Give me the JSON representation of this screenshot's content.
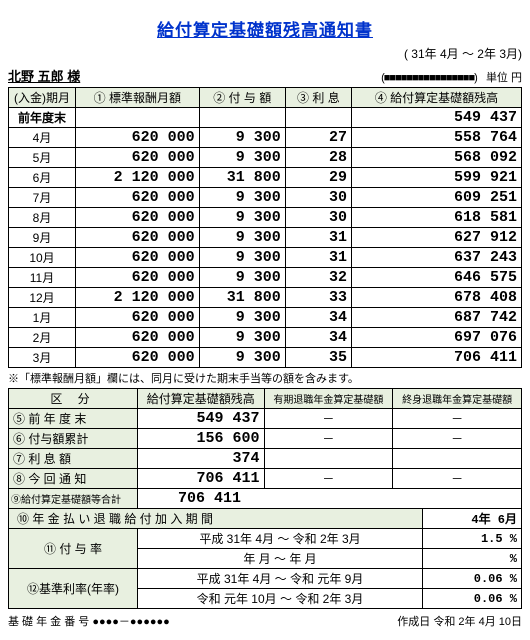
{
  "title": "給付算定基礎額残高通知書",
  "period": "( 31年 4月 ～ 2年 3月)",
  "name": "北野 五郎 様",
  "unit_block": "(■■■■■■■■■■■■■■■■)",
  "unit_label": "単位 円",
  "main_headers": {
    "c0": "(入金)期月",
    "c1": "① 標準報酬月額",
    "c2": "② 付 与 額",
    "c3": "③ 利   息",
    "c4": "④ 給付算定基礎額残高"
  },
  "rows": [
    {
      "m": "前年度末",
      "a": "",
      "b": "",
      "c": "",
      "d": "549 437"
    },
    {
      "m": "4月",
      "a": "620 000",
      "b": "9 300",
      "c": "27",
      "d": "558 764"
    },
    {
      "m": "5月",
      "a": "620 000",
      "b": "9 300",
      "c": "28",
      "d": "568 092"
    },
    {
      "m": "6月",
      "a": "2 120 000",
      "b": "31 800",
      "c": "29",
      "d": "599 921"
    },
    {
      "m": "7月",
      "a": "620 000",
      "b": "9 300",
      "c": "30",
      "d": "609 251"
    },
    {
      "m": "8月",
      "a": "620 000",
      "b": "9 300",
      "c": "30",
      "d": "618 581"
    },
    {
      "m": "9月",
      "a": "620 000",
      "b": "9 300",
      "c": "31",
      "d": "627 912"
    },
    {
      "m": "10月",
      "a": "620 000",
      "b": "9 300",
      "c": "31",
      "d": "637 243"
    },
    {
      "m": "11月",
      "a": "620 000",
      "b": "9 300",
      "c": "32",
      "d": "646 575"
    },
    {
      "m": "12月",
      "a": "2 120 000",
      "b": "31 800",
      "c": "33",
      "d": "678 408"
    },
    {
      "m": "1月",
      "a": "620 000",
      "b": "9 300",
      "c": "34",
      "d": "687 742"
    },
    {
      "m": "2月",
      "a": "620 000",
      "b": "9 300",
      "c": "34",
      "d": "697 076"
    },
    {
      "m": "3月",
      "a": "620 000",
      "b": "9 300",
      "c": "35",
      "d": "706 411"
    }
  ],
  "note": "※「標準報酬月額」欄には、同月に受けた期末手当等の額を含みます。",
  "sec2_headers": {
    "kubun": "区    分",
    "h1": "給付算定基礎額残高",
    "h2": "有期退職年金算定基礎額",
    "h3": "終身退職年金算定基礎額"
  },
  "sec2_rows": [
    {
      "label": "⑤ 前 年 度 末",
      "v1": "549 437",
      "v2": "－",
      "v3": "－"
    },
    {
      "label": "⑥ 付与額累計",
      "v1": "156 600",
      "v2": "－",
      "v3": "－"
    },
    {
      "label": "⑦ 利 息 額",
      "v1": "374",
      "v2": "",
      "v3": ""
    },
    {
      "label": "⑧ 今 回 通 知",
      "v1": "706 411",
      "v2": "－",
      "v3": "－"
    },
    {
      "label": "⑨給付算定基礎額等合計",
      "v1": "706 411",
      "v2": "",
      "v3": ""
    }
  ],
  "row10": {
    "label": "⑩  年 金 払 い 退 職 給 付 加 入 期 間",
    "value": "4年  6月"
  },
  "row11": {
    "label": "⑪   付  与  率",
    "line1_period": "平成  31年  4月  ～  令和  2年   3月",
    "line1_rate": "1.5 %",
    "line2_period": "年  月 ～    年  月",
    "line2_rate": "%"
  },
  "row12": {
    "label": "⑫基準利率(年率)",
    "line1_period": "平成  31年  4月  ～  令和 元年   9月",
    "line1_rate": "0.06 %",
    "line2_period": "令和  元年 10月  ～  令和  2年   3月",
    "line2_rate": "0.06 %"
  },
  "footer": {
    "left": "基 礎 年 金 番 号   ●●●●－●●●●●●",
    "right": "作成日     令和  2年    4月   10日"
  }
}
